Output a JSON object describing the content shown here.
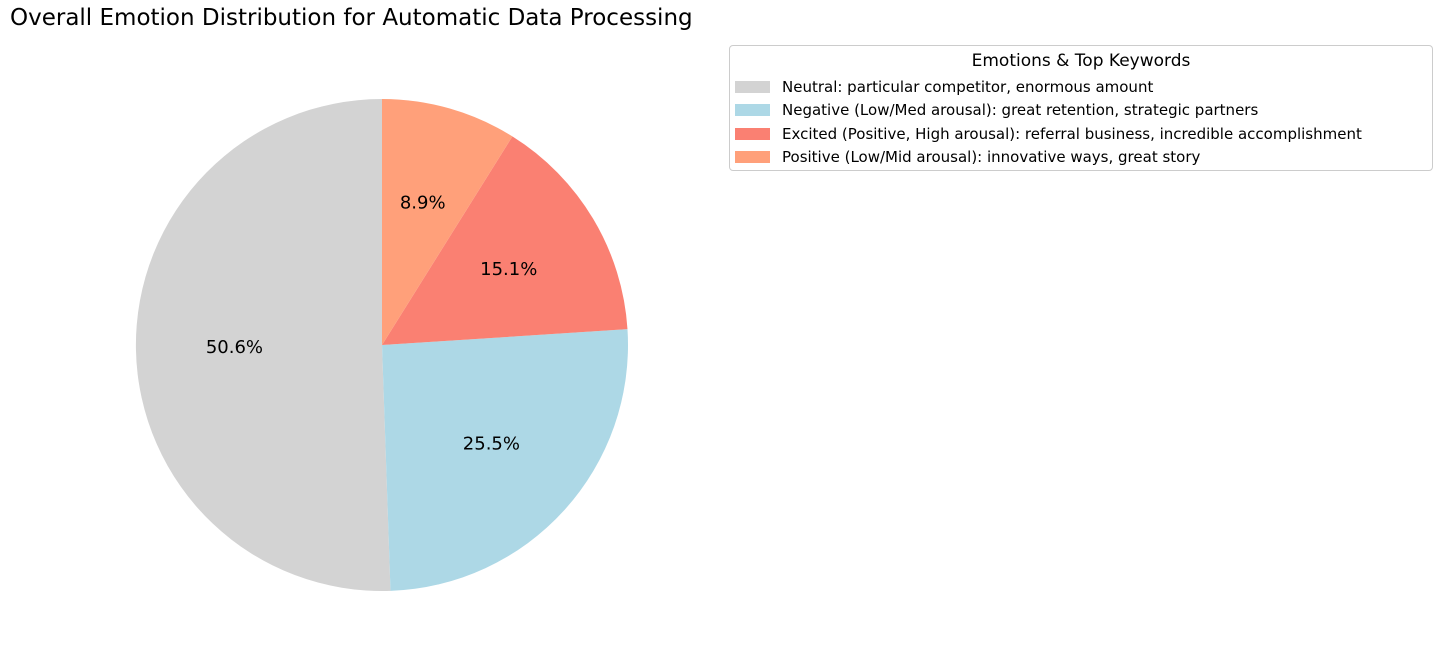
{
  "chart_data": {
    "type": "pie",
    "title": "Overall Emotion Distribution for Automatic Data Processing",
    "legend_title": "Emotions & Top Keywords",
    "legend_position": "top-right",
    "start_angle": "top",
    "direction": "counterclockwise",
    "slices": [
      {
        "label": "Neutral: particular competitor, enormous amount",
        "value": 50.6,
        "pct_label": "50.6%",
        "color": "#d3d3d3"
      },
      {
        "label": "Negative (Low/Med arousal): great retention, strategic partners",
        "value": 25.5,
        "pct_label": "25.5%",
        "color": "#add8e6"
      },
      {
        "label": "Excited (Positive, High arousal): referral business, incredible accomplishment",
        "value": 15.1,
        "pct_label": "15.1%",
        "color": "#fa8072"
      },
      {
        "label": "Positive (Low/Mid arousal): innovative ways, great story",
        "value": 8.9,
        "pct_label": "8.9%",
        "color": "#ffa07a"
      }
    ]
  }
}
